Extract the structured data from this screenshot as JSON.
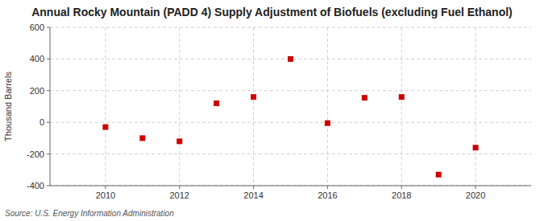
{
  "chart_data": {
    "type": "scatter",
    "title": "Annual Rocky Mountain (PADD 4) Supply Adjustment of Biofuels (excluding Fuel Ethanol)",
    "ylabel": "Thousand Barrels",
    "source": "Source: U.S. Energy Information Administration",
    "x": [
      2010,
      2011,
      2012,
      2013,
      2014,
      2015,
      2016,
      2017,
      2018,
      2019,
      2020
    ],
    "values": [
      -30,
      -100,
      -120,
      120,
      160,
      400,
      -5,
      155,
      160,
      -330,
      -160
    ],
    "xlim": [
      2008.5,
      2021.5
    ],
    "xticks": [
      2010,
      2012,
      2014,
      2016,
      2018,
      2020
    ],
    "ylim": [
      -400,
      600
    ],
    "yticks": [
      -400,
      -200,
      0,
      200,
      400,
      600
    ],
    "color": "#cc0000",
    "marker": "square",
    "grid": true
  }
}
